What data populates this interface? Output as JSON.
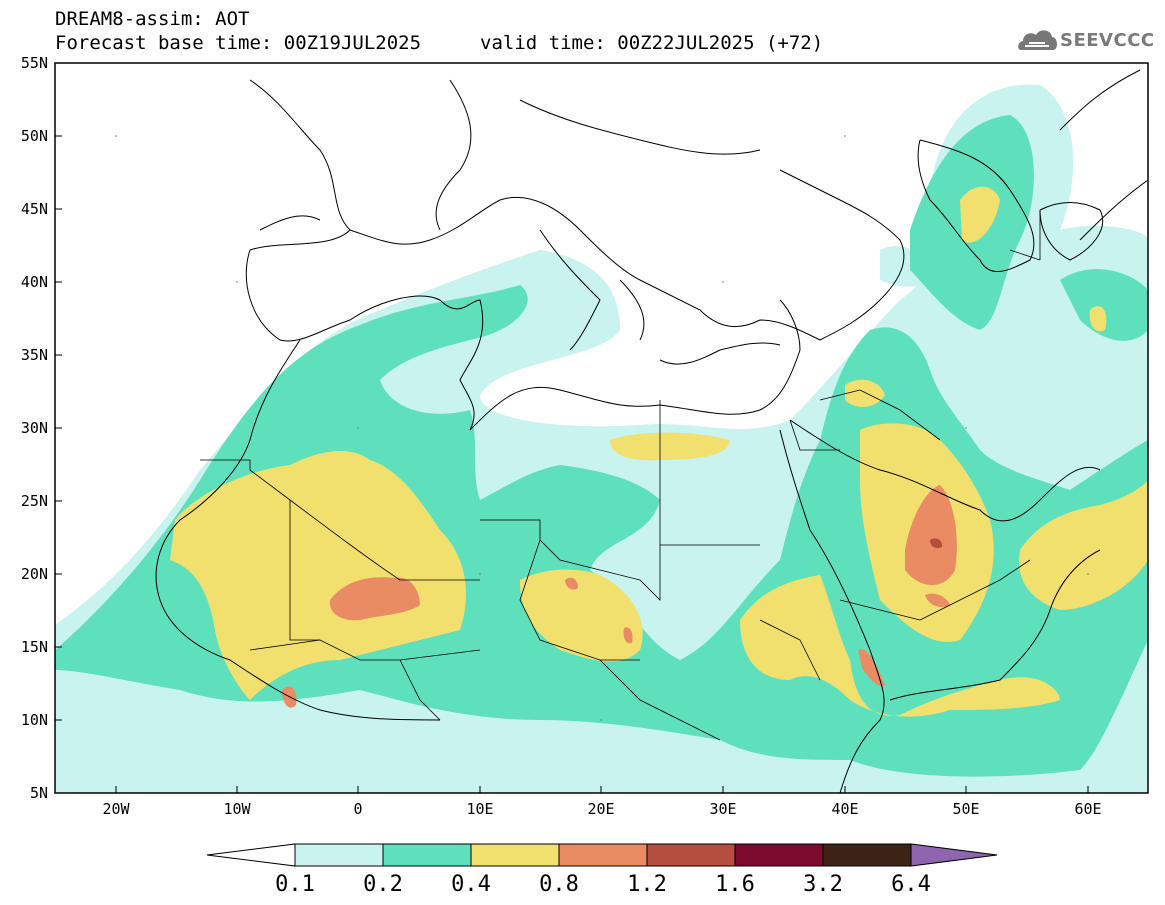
{
  "header": {
    "title": "DREAM8-assim: AOT",
    "base_time": "Forecast base time: 00Z19JUL2025",
    "valid_time": "valid time: 00Z22JUL2025 (+72)"
  },
  "logo": {
    "text": "SEEVCCC",
    "icon": "cloud-icon"
  },
  "map": {
    "lat_labels": [
      "55N",
      "50N",
      "45N",
      "40N",
      "35N",
      "30N",
      "25N",
      "20N",
      "15N",
      "10N",
      "5N"
    ],
    "lon_labels": [
      "20W",
      "10W",
      "0",
      "10E",
      "20E",
      "30E",
      "40E",
      "50E",
      "60E"
    ]
  },
  "colorbar": {
    "levels": [
      "0.1",
      "0.2",
      "0.4",
      "0.8",
      "1.2",
      "1.6",
      "3.2",
      "6.4"
    ],
    "colors": [
      "#c8f3ee",
      "#5fe0bc",
      "#f2e06e",
      "#e98c64",
      "#b54e3f",
      "#7c0a2c",
      "#3d2315",
      "#8e65ae"
    ]
  }
}
